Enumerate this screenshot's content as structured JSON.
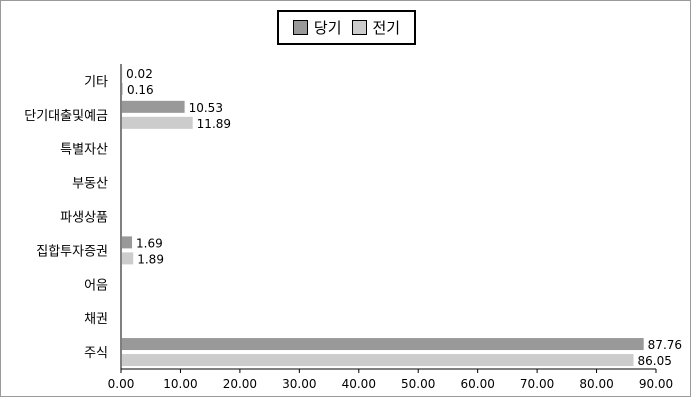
{
  "chart_data": {
    "type": "bar",
    "orientation": "horizontal",
    "categories": [
      "기타",
      "단기대출및예금",
      "특별자산",
      "부동산",
      "파생상품",
      "집합투자증권",
      "어음",
      "채권",
      "주식"
    ],
    "series": [
      {
        "name": "당기",
        "color": "#999999",
        "values": [
          0.02,
          10.53,
          null,
          null,
          null,
          1.69,
          null,
          null,
          87.76
        ]
      },
      {
        "name": "전기",
        "color": "#cccccc",
        "values": [
          0.16,
          11.89,
          null,
          null,
          null,
          1.89,
          null,
          null,
          86.05
        ]
      }
    ],
    "data_labels": [
      [
        "0.02",
        "10.53",
        "",
        "",
        "",
        "1.69",
        "",
        "",
        "87.76"
      ],
      [
        "0.16",
        "11.89",
        "",
        "",
        "",
        "1.89",
        "",
        "",
        "86.05"
      ]
    ],
    "xlim": [
      0,
      90
    ],
    "xticks": [
      "0.00",
      "10.00",
      "20.00",
      "30.00",
      "40.00",
      "50.00",
      "60.00",
      "70.00",
      "80.00",
      "90.00"
    ],
    "legend": {
      "position": "top",
      "entries": [
        "당기",
        "전기"
      ]
    },
    "grid": false
  }
}
